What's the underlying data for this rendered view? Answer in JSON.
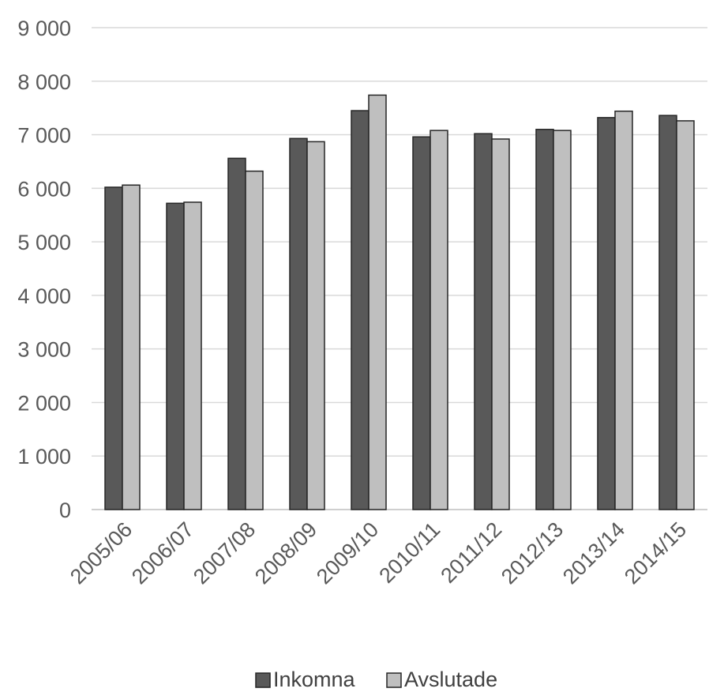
{
  "chart_data": {
    "type": "bar",
    "title": "",
    "xlabel": "",
    "ylabel": "",
    "categories": [
      "2005/06",
      "2006/07",
      "2007/08",
      "2008/09",
      "2009/10",
      "2010/11",
      "2011/12",
      "2012/13",
      "2013/14",
      "2014/15"
    ],
    "series": [
      {
        "name": "Inkomna",
        "color": "#595959",
        "values": [
          6020,
          5720,
          6560,
          6930,
          7450,
          6960,
          7020,
          7100,
          7320,
          7360
        ]
      },
      {
        "name": "Avslutade",
        "color": "#bfbfbf",
        "values": [
          6060,
          5740,
          6320,
          6870,
          7740,
          7080,
          6920,
          7080,
          7440,
          7260
        ]
      }
    ],
    "ylim": [
      0,
      9000
    ],
    "yticks": [
      0,
      1000,
      2000,
      3000,
      4000,
      5000,
      6000,
      7000,
      8000,
      9000
    ],
    "ytick_labels": [
      "0",
      "1 000",
      "2 000",
      "3 000",
      "4 000",
      "5 000",
      "6 000",
      "7 000",
      "8 000",
      "9 000"
    ],
    "grid": true,
    "legend_position": "bottom"
  }
}
